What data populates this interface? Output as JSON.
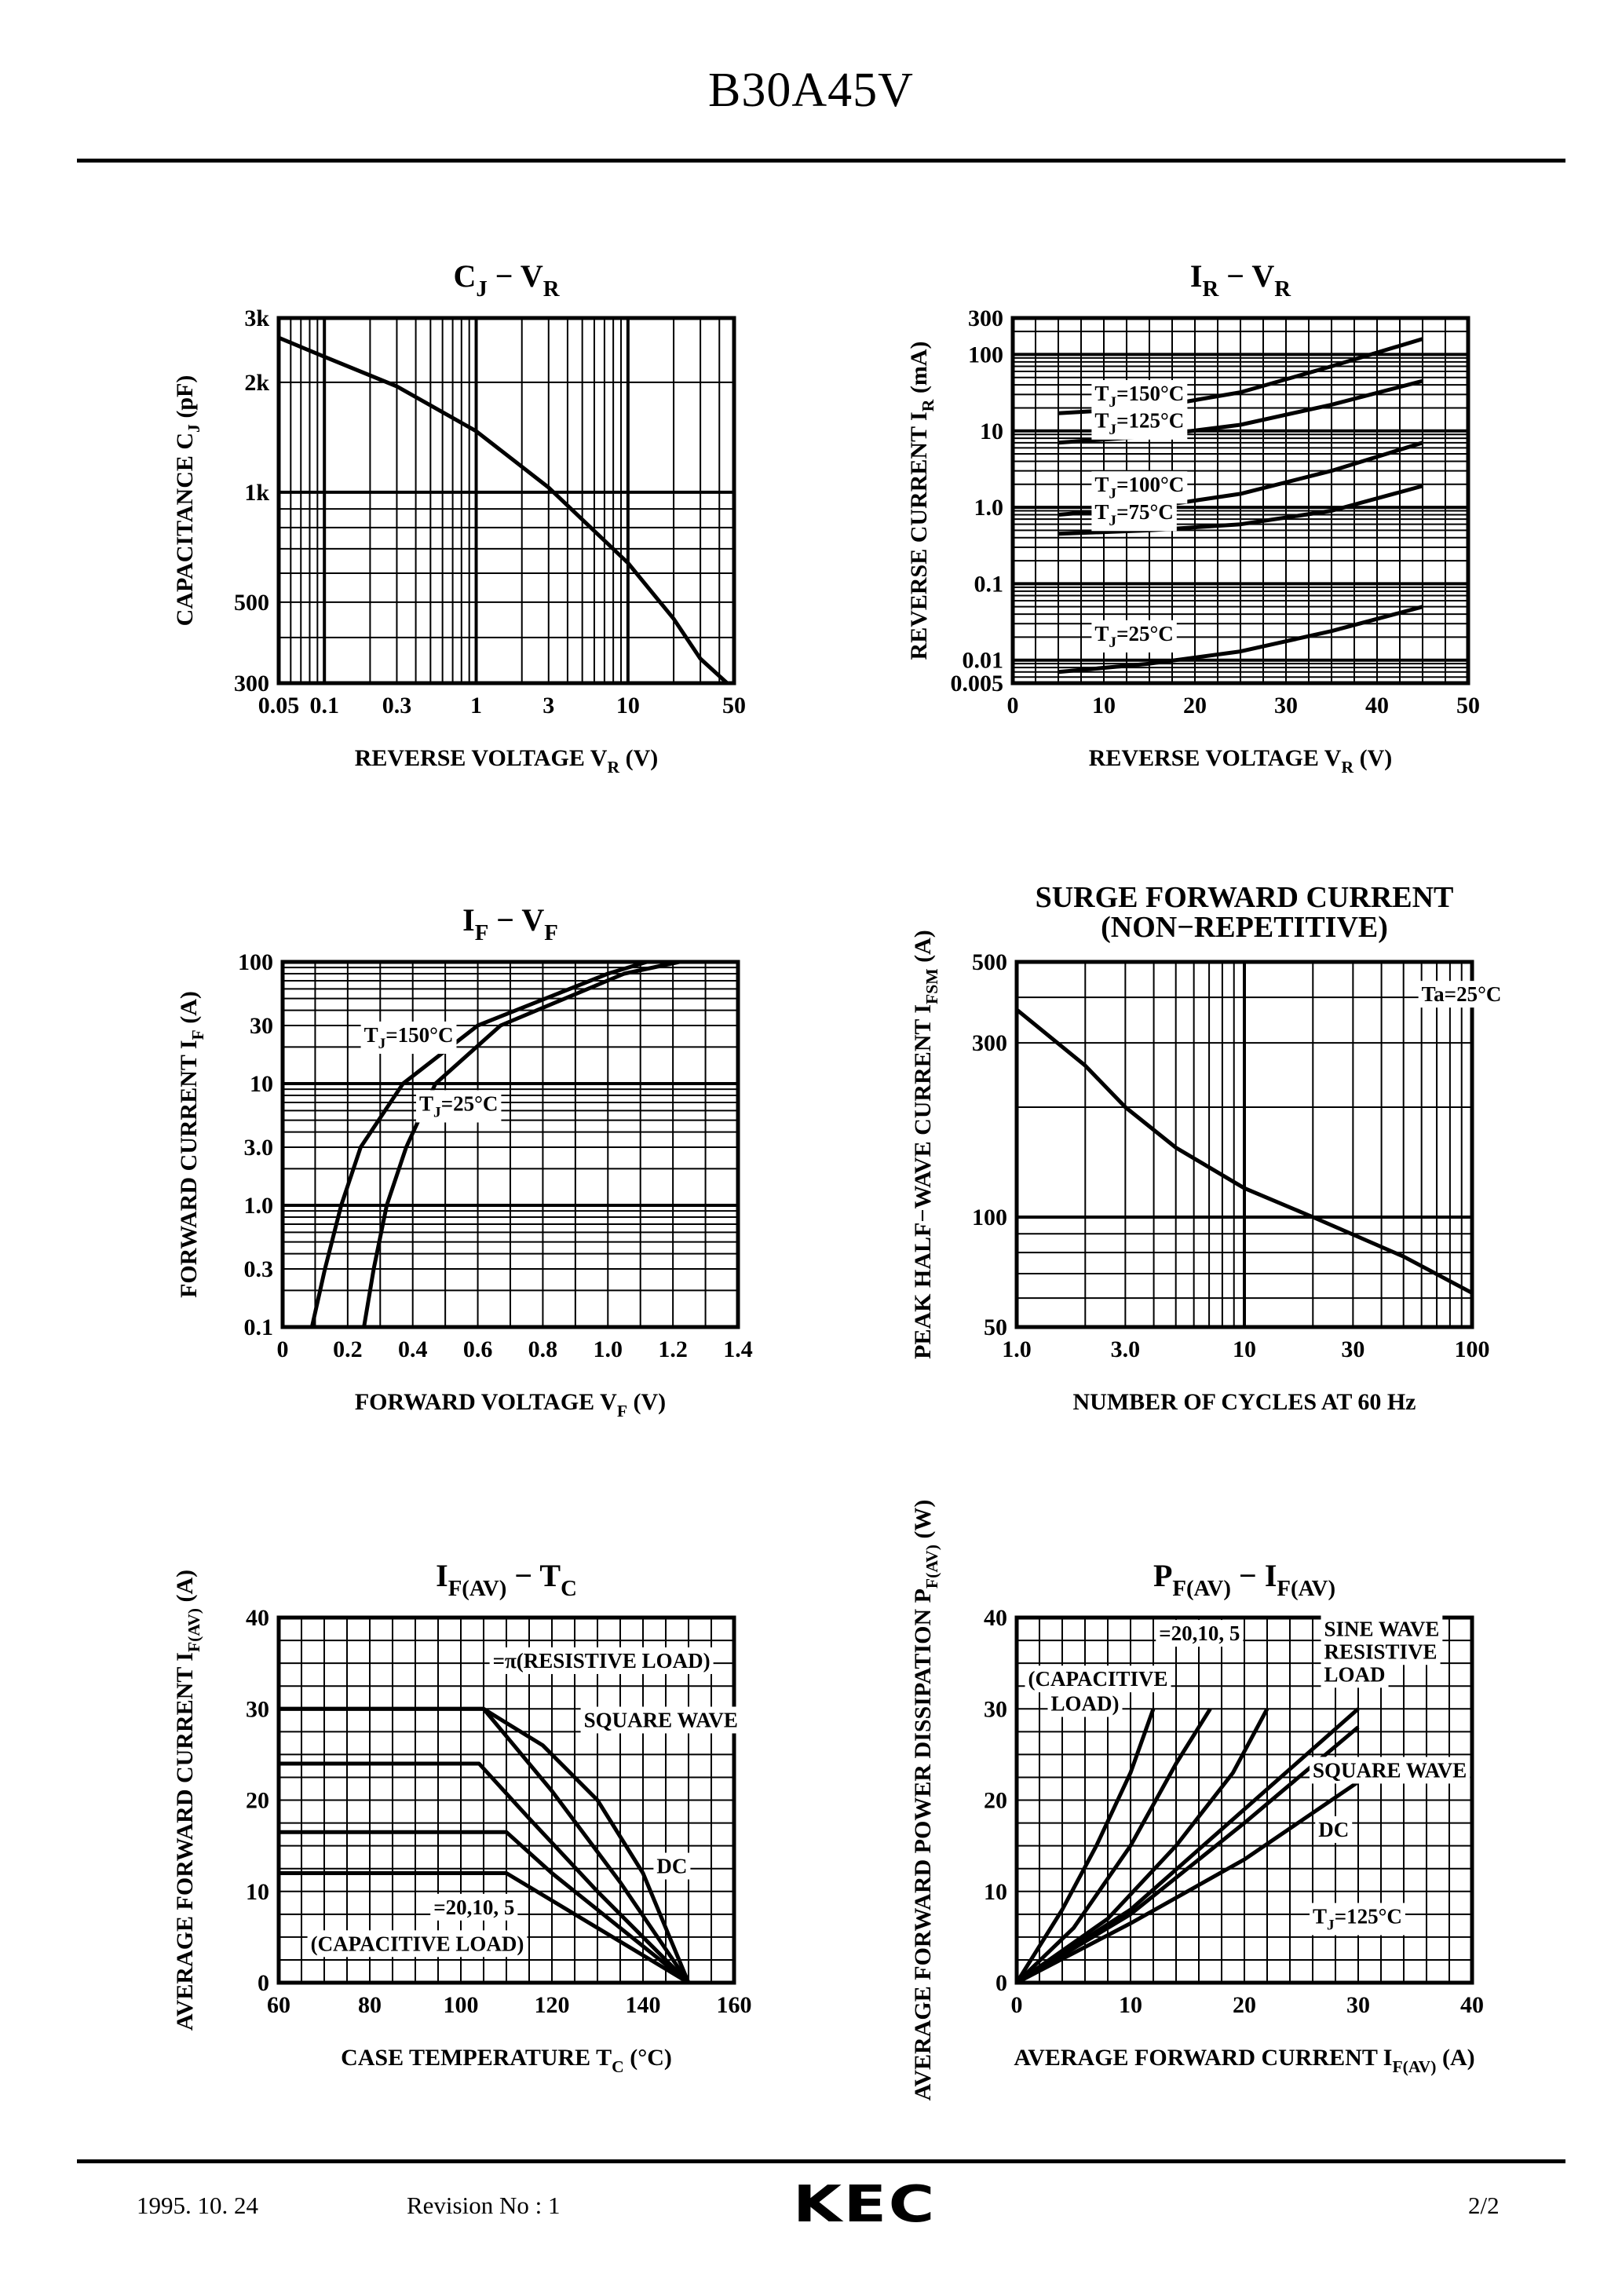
{
  "header": {
    "title": "B30A45V"
  },
  "footer": {
    "date": "1995. 10. 24",
    "revision": "Revision No : 1",
    "page": "2/2",
    "logo": "KEC"
  },
  "chart_data": [
    {
      "id": "cj-vr",
      "type": "line",
      "title": "C_J − V_R",
      "xlabel": "REVERSE VOLTAGE V_R (V)",
      "ylabel": "CAPACITANCE C_J (pF)",
      "xscale": "log",
      "yscale": "log",
      "xlim": [
        0.05,
        50
      ],
      "ylim": [
        300,
        3000
      ],
      "xticks": [
        {
          "v": 0.05,
          "t": "0.05"
        },
        {
          "v": 0.1,
          "t": "0.1"
        },
        {
          "v": 0.3,
          "t": "0.3"
        },
        {
          "v": 1,
          "t": "1"
        },
        {
          "v": 3,
          "t": "3"
        },
        {
          "v": 10,
          "t": "10"
        },
        {
          "v": 50,
          "t": "50"
        }
      ],
      "yticks": [
        {
          "v": 300,
          "t": "300"
        },
        {
          "v": 500,
          "t": "500"
        },
        {
          "v": 1000,
          "t": "1k"
        },
        {
          "v": 2000,
          "t": "2k"
        },
        {
          "v": 3000,
          "t": "3k"
        }
      ],
      "series": [
        {
          "points": [
            [
              0.05,
              2650
            ],
            [
              0.1,
              2350
            ],
            [
              0.3,
              1950
            ],
            [
              1,
              1470
            ],
            [
              3,
              1030
            ],
            [
              10,
              640
            ],
            [
              20,
              450
            ],
            [
              30,
              350
            ],
            [
              45,
              300
            ]
          ]
        }
      ],
      "annotations": []
    },
    {
      "id": "ir-vr",
      "type": "line",
      "title": "I_R − V_R",
      "xlabel": "REVERSE VOLTAGE V_R (V)",
      "ylabel": "REVERSE CURRENT I_R (mA)",
      "xscale": "linear",
      "yscale": "log",
      "xlim": [
        0,
        50
      ],
      "ylim": [
        0.005,
        300
      ],
      "xticks": [
        {
          "v": 0,
          "t": "0"
        },
        {
          "v": 10,
          "t": "10"
        },
        {
          "v": 20,
          "t": "20"
        },
        {
          "v": 30,
          "t": "30"
        },
        {
          "v": 40,
          "t": "40"
        },
        {
          "v": 50,
          "t": "50"
        }
      ],
      "yticks": [
        {
          "v": 0.005,
          "t": "0.005"
        },
        {
          "v": 0.01,
          "t": "0.01"
        },
        {
          "v": 0.1,
          "t": "0.1"
        },
        {
          "v": 1,
          "t": "1.0"
        },
        {
          "v": 10,
          "t": "10"
        },
        {
          "v": 100,
          "t": "100"
        },
        {
          "v": 300,
          "t": "300"
        }
      ],
      "series": [
        {
          "name": "T_J=150°C",
          "points": [
            [
              5,
              17
            ],
            [
              15,
              20
            ],
            [
              25,
              32
            ],
            [
              35,
              70
            ],
            [
              45,
              160
            ]
          ]
        },
        {
          "name": "T_J=125°C",
          "points": [
            [
              5,
              7
            ],
            [
              15,
              8.5
            ],
            [
              25,
              12
            ],
            [
              35,
              22
            ],
            [
              45,
              45
            ]
          ]
        },
        {
          "name": "T_J=100°C",
          "points": [
            [
              5,
              0.8
            ],
            [
              15,
              1
            ],
            [
              25,
              1.5
            ],
            [
              35,
              3
            ],
            [
              45,
              7
            ]
          ]
        },
        {
          "name": "T_J=75°C",
          "points": [
            [
              5,
              0.45
            ],
            [
              15,
              0.5
            ],
            [
              25,
              0.6
            ],
            [
              35,
              0.9
            ],
            [
              45,
              1.9
            ]
          ]
        },
        {
          "name": "T_J=25°C",
          "points": [
            [
              5,
              0.007
            ],
            [
              15,
              0.009
            ],
            [
              25,
              0.013
            ],
            [
              35,
              0.024
            ],
            [
              45,
              0.05
            ]
          ]
        }
      ],
      "annotations": [
        {
          "t": "T_J=150°C",
          "x": 9,
          "y": 25
        },
        {
          "t": "T_J=125°C",
          "x": 9,
          "y": 11
        },
        {
          "t": "T_J=100°C",
          "x": 9,
          "y": 1.6
        },
        {
          "t": "T_J=75°C",
          "x": 9,
          "y": 0.7
        },
        {
          "t": "T_J=25°C",
          "x": 9,
          "y": 0.018
        }
      ]
    },
    {
      "id": "if-vf",
      "type": "line",
      "title": "I_F − V_F",
      "xlabel": "FORWARD VOLTAGE V_F (V)",
      "ylabel": "FORWARD CURRENT I_F (A)",
      "xscale": "linear",
      "yscale": "log",
      "xlim": [
        0,
        1.4
      ],
      "ylim": [
        0.1,
        100
      ],
      "xticks": [
        {
          "v": 0,
          "t": "0"
        },
        {
          "v": 0.2,
          "t": "0.2"
        },
        {
          "v": 0.4,
          "t": "0.4"
        },
        {
          "v": 0.6,
          "t": "0.6"
        },
        {
          "v": 0.8,
          "t": "0.8"
        },
        {
          "v": 1.0,
          "t": "1.0"
        },
        {
          "v": 1.2,
          "t": "1.2"
        },
        {
          "v": 1.4,
          "t": "1.4"
        }
      ],
      "yticks": [
        {
          "v": 0.1,
          "t": "0.1"
        },
        {
          "v": 0.3,
          "t": "0.3"
        },
        {
          "v": 1,
          "t": "1.0"
        },
        {
          "v": 3,
          "t": "3.0"
        },
        {
          "v": 10,
          "t": "10"
        },
        {
          "v": 30,
          "t": "30"
        },
        {
          "v": 100,
          "t": "100"
        }
      ],
      "series": [
        {
          "name": "T_J=150°C",
          "points": [
            [
              0.09,
              0.1
            ],
            [
              0.13,
              0.3
            ],
            [
              0.18,
              1
            ],
            [
              0.24,
              3
            ],
            [
              0.37,
              10
            ],
            [
              0.6,
              30
            ],
            [
              1.0,
              80
            ],
            [
              1.12,
              100
            ]
          ]
        },
        {
          "name": "T_J=25°C",
          "points": [
            [
              0.25,
              0.1
            ],
            [
              0.28,
              0.3
            ],
            [
              0.32,
              1
            ],
            [
              0.38,
              3
            ],
            [
              0.47,
              10
            ],
            [
              0.67,
              30
            ],
            [
              1.05,
              80
            ],
            [
              1.22,
              100
            ]
          ]
        }
      ],
      "annotations": [
        {
          "t": "T_J=150°C",
          "x": 0.25,
          "y": 22
        },
        {
          "t": "T_J=25°C",
          "x": 0.42,
          "y": 6
        }
      ]
    },
    {
      "id": "ifsm-cycles",
      "type": "line",
      "title": "SURGE FORWARD CURRENT",
      "subtitle": "(NON−REPETITIVE)",
      "xlabel": "NUMBER OF CYCLES AT 60 Hz",
      "ylabel": "PEAK HALF−WAVE CURRENT I_FSM (A)",
      "xscale": "log",
      "yscale": "log",
      "xlim": [
        1,
        100
      ],
      "ylim": [
        50,
        500
      ],
      "xticks": [
        {
          "v": 1,
          "t": "1.0"
        },
        {
          "v": 3,
          "t": "3.0"
        },
        {
          "v": 10,
          "t": "10"
        },
        {
          "v": 30,
          "t": "30"
        },
        {
          "v": 100,
          "t": "100"
        }
      ],
      "yticks": [
        {
          "v": 50,
          "t": "50"
        },
        {
          "v": 100,
          "t": "100"
        },
        {
          "v": 300,
          "t": "300"
        },
        {
          "v": 500,
          "t": "500"
        }
      ],
      "series": [
        {
          "points": [
            [
              1,
              370
            ],
            [
              2,
              260
            ],
            [
              3,
              200
            ],
            [
              5,
              155
            ],
            [
              10,
              120
            ],
            [
              20,
              100
            ],
            [
              50,
              78
            ],
            [
              100,
              62
            ]
          ]
        }
      ],
      "annotations": [
        {
          "t": "Ta=25°C",
          "x": 60,
          "y": 390
        }
      ]
    },
    {
      "id": "ifav-tc",
      "type": "line",
      "title": "I_F(AV) − T_C",
      "xlabel": "CASE TEMPERATURE T_C (°C)",
      "ylabel": "AVERAGE FORWARD CURRENT I_F(AV) (A)",
      "xscale": "linear",
      "yscale": "linear",
      "xlim": [
        60,
        160
      ],
      "ylim": [
        0,
        40
      ],
      "xticks": [
        {
          "v": 60,
          "t": "60"
        },
        {
          "v": 80,
          "t": "80"
        },
        {
          "v": 100,
          "t": "100"
        },
        {
          "v": 120,
          "t": "120"
        },
        {
          "v": 140,
          "t": "140"
        },
        {
          "v": 160,
          "t": "160"
        }
      ],
      "yticks": [
        {
          "v": 0,
          "t": "0"
        },
        {
          "v": 10,
          "t": "10"
        },
        {
          "v": 20,
          "t": "20"
        },
        {
          "v": 30,
          "t": "30"
        },
        {
          "v": 40,
          "t": "40"
        }
      ],
      "series": [
        {
          "name": "DC",
          "points": [
            [
              60,
              30
            ],
            [
              105,
              30
            ],
            [
              118,
              26
            ],
            [
              130,
              20
            ],
            [
              140,
              12
            ],
            [
              150,
              0
            ]
          ]
        },
        {
          "name": "π",
          "points": [
            [
              60,
              30
            ],
            [
              105,
              30
            ],
            [
              120,
              21
            ],
            [
              135,
              11
            ],
            [
              150,
              0
            ]
          ]
        },
        {
          "name": "20",
          "points": [
            [
              60,
              24
            ],
            [
              104,
              24
            ],
            [
              115,
              18
            ],
            [
              130,
              10
            ],
            [
              150,
              0
            ]
          ]
        },
        {
          "name": "10",
          "points": [
            [
              60,
              16.5
            ],
            [
              110,
              16.5
            ],
            [
              120,
              12
            ],
            [
              150,
              0
            ]
          ]
        },
        {
          "name": "5",
          "points": [
            [
              60,
              12
            ],
            [
              110,
              12
            ],
            [
              150,
              0
            ]
          ]
        }
      ],
      "annotations": [
        {
          "t": "=π(RESISTIVE LOAD)",
          "x": 107,
          "y": 34.5
        },
        {
          "t": "SQUARE WAVE",
          "x": 127,
          "y": 28
        },
        {
          "t": "DC",
          "x": 143,
          "y": 12
        },
        {
          "t": "=20,10,  5",
          "x": 94,
          "y": 7.5
        },
        {
          "t": "(CAPACITIVE LOAD)",
          "x": 67,
          "y": 3.5
        }
      ]
    },
    {
      "id": "pfav-ifav",
      "type": "line",
      "title": "P_F(AV) − I_F(AV)",
      "xlabel": "AVERAGE FORWARD CURRENT I_F(AV) (A)",
      "ylabel": "AVERAGE FORWARD POWER DISSIPATION P_F(AV) (W)",
      "xscale": "linear",
      "yscale": "linear",
      "xlim": [
        0,
        40
      ],
      "ylim": [
        0,
        40
      ],
      "xticks": [
        {
          "v": 0,
          "t": "0"
        },
        {
          "v": 10,
          "t": "10"
        },
        {
          "v": 20,
          "t": "20"
        },
        {
          "v": 30,
          "t": "30"
        },
        {
          "v": 40,
          "t": "40"
        }
      ],
      "yticks": [
        {
          "v": 0,
          "t": "0"
        },
        {
          "v": 10,
          "t": "10"
        },
        {
          "v": 20,
          "t": "20"
        },
        {
          "v": 30,
          "t": "30"
        },
        {
          "v": 40,
          "t": "40"
        }
      ],
      "series": [
        {
          "name": "20",
          "points": [
            [
              0,
              0
            ],
            [
              4,
              8
            ],
            [
              7,
              15
            ],
            [
              10,
              23
            ],
            [
              12,
              30
            ]
          ]
        },
        {
          "name": "10",
          "points": [
            [
              0,
              0
            ],
            [
              5,
              6
            ],
            [
              10,
              15
            ],
            [
              14,
              24
            ],
            [
              17,
              30
            ]
          ]
        },
        {
          "name": "5",
          "points": [
            [
              0,
              0
            ],
            [
              8,
              7
            ],
            [
              14,
              15
            ],
            [
              19,
              23
            ],
            [
              22,
              30
            ]
          ]
        },
        {
          "name": "SINE WAVE RESISTIVE LOAD",
          "points": [
            [
              0,
              0
            ],
            [
              10,
              8
            ],
            [
              20,
              19
            ],
            [
              30,
              30
            ]
          ]
        },
        {
          "name": "SQUARE WAVE",
          "points": [
            [
              0,
              0
            ],
            [
              10,
              7.5
            ],
            [
              20,
              17.5
            ],
            [
              30,
              28
            ]
          ]
        },
        {
          "name": "DC",
          "points": [
            [
              0,
              0
            ],
            [
              10,
              6.5
            ],
            [
              20,
              13.5
            ],
            [
              30,
              22
            ]
          ]
        }
      ],
      "annotations": [
        {
          "t": "=20,10,  5",
          "x": 12.5,
          "y": 37.5
        },
        {
          "t": "(CAPACITIVE",
          "x": 1,
          "y": 32.5
        },
        {
          "t": "LOAD)",
          "x": 3,
          "y": 29.8
        },
        {
          "t": "SINE WAVE",
          "x": 27,
          "y": 38
        },
        {
          "t": "RESISTIVE",
          "x": 27,
          "y": 35.5
        },
        {
          "t": "LOAD",
          "x": 27,
          "y": 33
        },
        {
          "t": "SQUARE WAVE",
          "x": 26,
          "y": 22.5
        },
        {
          "t": "DC",
          "x": 26.5,
          "y": 16
        },
        {
          "t": "T_J=125°C",
          "x": 26,
          "y": 6.5
        }
      ]
    }
  ]
}
